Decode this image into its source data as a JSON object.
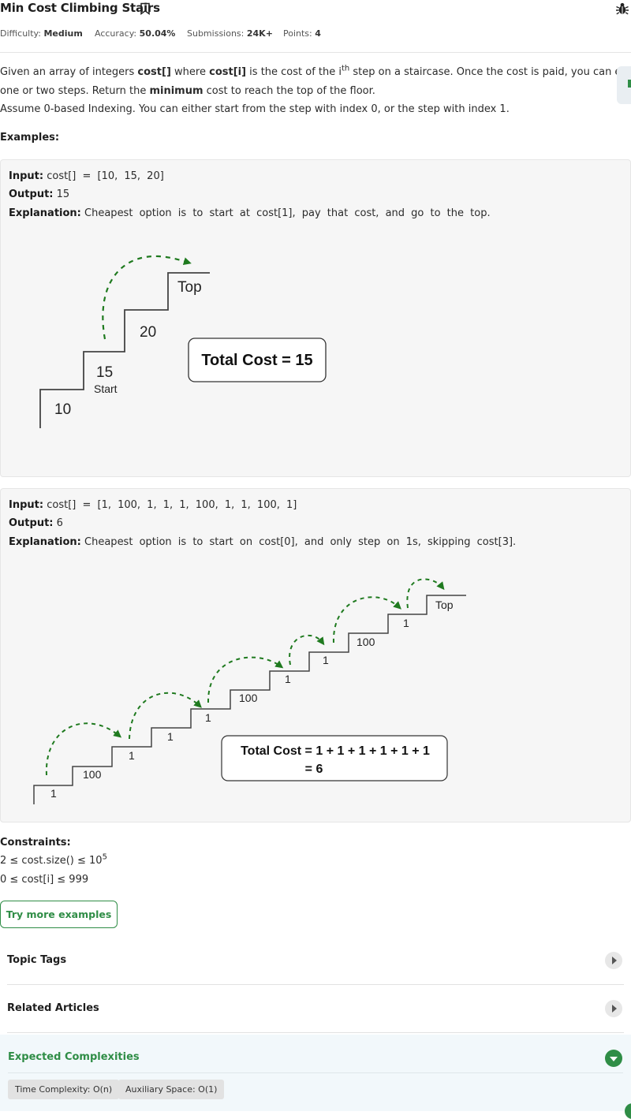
{
  "problem": {
    "title": "Min Cost Climbing Stairs",
    "difficulty_label": "Difficulty:",
    "difficulty": "Medium",
    "accuracy_label": "Accuracy:",
    "accuracy": "50.04%",
    "submissions_label": "Submissions:",
    "submissions": "24K+",
    "points_label": "Points:",
    "points": "4"
  },
  "description": {
    "p1_a": "Given an array of integers ",
    "p1_b": "cost[]",
    "p1_c": " where ",
    "p1_d": "cost[i]",
    "p1_e": " is the cost of the i",
    "p1_sup": "th",
    "p1_f": " step on a staircase. Once the cost is paid, you can either climb",
    "p2_a": "one or two steps. Return the ",
    "p2_b": "minimum",
    "p2_c": " cost to reach the top of the floor.",
    "p3": "Assume 0-based Indexing. You can either start from the step with index 0, or the step with index 1."
  },
  "examples_heading": "Examples:",
  "labels": {
    "input": "Input:",
    "output": "Output:",
    "explanation": "Explanation:"
  },
  "examples": [
    {
      "input": "cost[] = [10, 15, 20]",
      "output": "15",
      "explanation": "Cheapest option is to start at cost[1], pay that cost, and go to the top.",
      "figure": {
        "steps": [
          "10",
          "15",
          "20"
        ],
        "start_label": "Start",
        "top_label": "Top",
        "total": "Total Cost = 15"
      }
    },
    {
      "input": "cost[] = [1, 100, 1, 1, 1, 100, 1, 1, 100, 1]",
      "output": "6",
      "explanation": "Cheapest option is to start on cost[0], and only step on 1s, skipping cost[3].",
      "figure": {
        "steps": [
          "1",
          "100",
          "1",
          "1",
          "1",
          "100",
          "1",
          "1",
          "100",
          "1"
        ],
        "top_label": "Top",
        "total_line1": "Total Cost = 1 + 1 + 1 + 1 + 1 + 1",
        "total_line2": "= 6"
      }
    }
  ],
  "constraints": {
    "heading": "Constraints:",
    "c1_a": "2 ≤ cost.size() ≤ 10",
    "c1_sup": "5",
    "c2": "0 ≤ cost[i] ≤ 999"
  },
  "try_button": "Try more examples",
  "accordions": {
    "topic_tags": "Topic Tags",
    "related_articles": "Related Articles",
    "expected_complexities": "Expected Complexities"
  },
  "complexities": {
    "time": "Time Complexity: O(n)",
    "space": "Auxiliary Space: O(1)"
  },
  "colors": {
    "brand_green": "#2f8d46",
    "arrow_green": "#1f7a1f"
  },
  "icons": [
    "bookmark-icon",
    "bug-icon",
    "chevron-right-icon",
    "chevron-down-icon"
  ]
}
